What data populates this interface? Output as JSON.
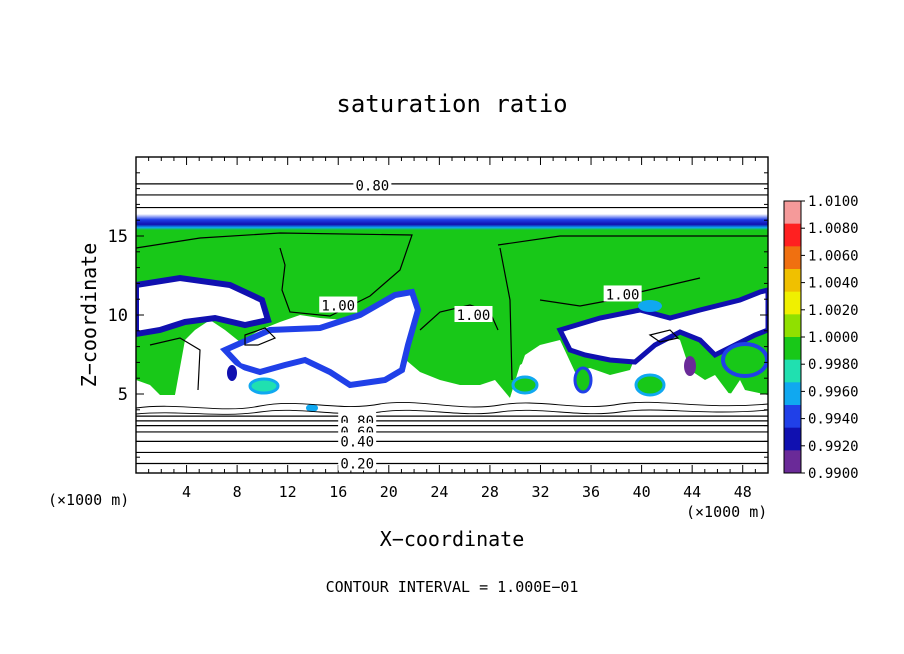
{
  "chart_data": {
    "type": "heatmap",
    "title": "saturation ratio",
    "xlabel": "X−coordinate",
    "ylabel": "Z−coordinate",
    "x_unit_left": "(×1000 m)",
    "x_unit_right": "(×1000 m)",
    "xlim": [
      0,
      50
    ],
    "ylim": [
      0,
      20
    ],
    "x_ticks": [
      4,
      8,
      12,
      16,
      20,
      24,
      28,
      32,
      36,
      40,
      44,
      48
    ],
    "y_ticks": [
      5,
      10,
      15
    ],
    "footer": "CONTOUR INTERVAL = 1.000E−01",
    "colorbar": {
      "levels": [
        "1.0100",
        "1.0080",
        "1.0060",
        "1.0040",
        "1.0020",
        "1.0000",
        "0.9980",
        "0.9960",
        "0.9940",
        "0.9920",
        "0.9900"
      ],
      "colors": [
        "#f59a9a",
        "#ff2020",
        "#f07010",
        "#f0c000",
        "#f0f000",
        "#90e000",
        "#18c818",
        "#20e0b0",
        "#10a8f0",
        "#2040e8",
        "#1010b0",
        "#6a2a98"
      ]
    },
    "contour_labels": [
      {
        "text": "0.80",
        "x": 18.7,
        "y": 18.2
      },
      {
        "text": "1.00",
        "x": 16.0,
        "y": 10.6
      },
      {
        "text": "1.00",
        "x": 26.7,
        "y": 10.0
      },
      {
        "text": "1.00",
        "x": 38.5,
        "y": 11.3
      },
      {
        "text": "0.80",
        "x": 17.5,
        "y": 3.3
      },
      {
        "text": "0.60",
        "x": 17.5,
        "y": 2.6
      },
      {
        "text": "0.40",
        "x": 17.5,
        "y": 2.0
      },
      {
        "text": "0.20",
        "x": 17.5,
        "y": 0.6
      }
    ],
    "horizontal_contours_z": [
      0.6,
      1.3,
      2.0,
      2.6,
      3.0,
      3.3,
      3.6,
      18.3,
      17.6,
      16.8
    ],
    "cloud_top_z": 16.0
  }
}
